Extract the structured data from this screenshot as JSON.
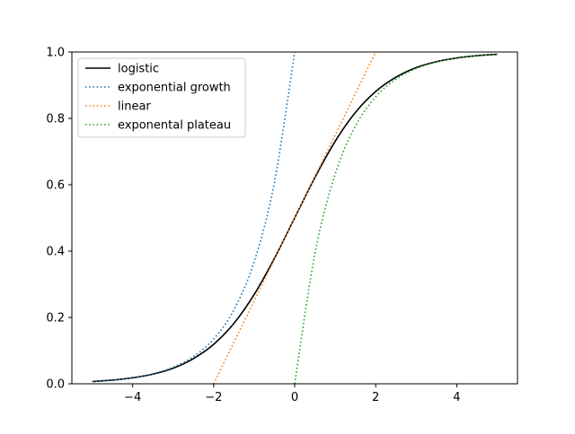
{
  "chart_data": {
    "type": "line",
    "title": "",
    "xlabel": "",
    "ylabel": "",
    "xlim": [
      -5.5,
      5.5
    ],
    "ylim": [
      0,
      1
    ],
    "xticks": [
      -4,
      -2,
      0,
      2,
      4
    ],
    "yticks": [
      0.0,
      0.2,
      0.4,
      0.6,
      0.8,
      1.0
    ],
    "xtick_labels": [
      "−4",
      "−2",
      "0",
      "2",
      "4"
    ],
    "ytick_labels": [
      "0.0",
      "0.2",
      "0.4",
      "0.6",
      "0.8",
      "1.0"
    ],
    "grid": false,
    "legend_position": "top-left",
    "x": [
      -5.0,
      -4.5,
      -4.0,
      -3.5,
      -3.0,
      -2.5,
      -2.0,
      -1.5,
      -1.0,
      -0.5,
      0.0,
      0.5,
      1.0,
      1.5,
      2.0,
      2.5,
      3.0,
      3.5,
      4.0,
      4.5,
      5.0
    ],
    "series": [
      {
        "name": "logistic",
        "color": "#000000",
        "style": "solid",
        "values": [
          0.007,
          0.011,
          0.018,
          0.029,
          0.047,
          0.076,
          0.119,
          0.182,
          0.269,
          0.378,
          0.5,
          0.622,
          0.731,
          0.818,
          0.881,
          0.924,
          0.953,
          0.971,
          0.982,
          0.989,
          0.993
        ]
      },
      {
        "name": "exponential growth",
        "color": "#1f77b4",
        "style": "dotted",
        "values": [
          0.007,
          0.011,
          0.018,
          0.03,
          0.05,
          0.082,
          0.135,
          0.223,
          0.368,
          0.607,
          1.0,
          null,
          null,
          null,
          null,
          null,
          null,
          null,
          null,
          null,
          null
        ]
      },
      {
        "name": "linear",
        "color": "#ff7f0e",
        "style": "dotted",
        "values": [
          null,
          null,
          null,
          null,
          null,
          null,
          0.0,
          0.125,
          0.25,
          0.375,
          0.5,
          0.625,
          0.75,
          0.875,
          1.0,
          null,
          null,
          null,
          null,
          null,
          null
        ]
      },
      {
        "name": "exponental plateau",
        "color": "#2ca02c",
        "style": "dotted",
        "values": [
          null,
          null,
          null,
          null,
          null,
          null,
          null,
          null,
          null,
          null,
          0.0,
          0.393,
          0.632,
          0.777,
          0.865,
          0.918,
          0.95,
          0.97,
          0.982,
          0.989,
          0.993
        ]
      }
    ]
  }
}
